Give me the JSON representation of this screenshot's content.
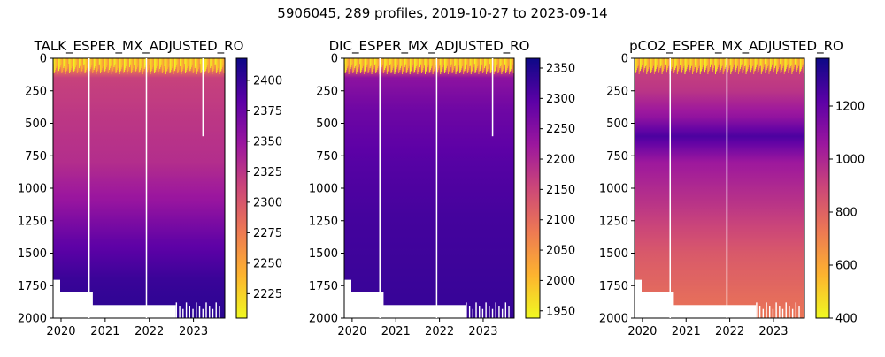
{
  "figure": {
    "suptitle": "5906045, 289 profiles, 2019-10-27 to 2023-09-14"
  },
  "colormap": {
    "name": "plasma_r",
    "stops": [
      "#f0f921",
      "#fdb32f",
      "#ed7953",
      "#cc4778",
      "#9c179e",
      "#5c01a6",
      "#0d0887"
    ]
  },
  "chart_data": [
    {
      "type": "heatmap",
      "title": "TALK_ESPER_MX_ADJUSTED_RO",
      "x_ticks": [
        "2020",
        "2021",
        "2022",
        "2023"
      ],
      "x_range": [
        2019.82,
        2023.71
      ],
      "y_ticks": [
        0,
        250,
        500,
        750,
        1000,
        1250,
        1500,
        1750,
        2000
      ],
      "y_range": [
        0,
        2000
      ],
      "y_inverted": true,
      "colorbar_ticks": [
        2225,
        2250,
        2275,
        2300,
        2325,
        2350,
        2375,
        2400
      ],
      "colorbar_range": [
        2205,
        2418
      ],
      "n_profiles": 289,
      "profile": [
        {
          "depth": 0,
          "value": 2215
        },
        {
          "depth": 40,
          "value": 2250
        },
        {
          "depth": 150,
          "value": 2315
        },
        {
          "depth": 400,
          "value": 2322
        },
        {
          "depth": 800,
          "value": 2330
        },
        {
          "depth": 1100,
          "value": 2350
        },
        {
          "depth": 1400,
          "value": 2378
        },
        {
          "depth": 1700,
          "value": 2398
        },
        {
          "depth": 2000,
          "value": 2405
        }
      ],
      "gaps": [
        2020.62,
        2021.92,
        2023.2
      ],
      "gap_bottoms": [
        2000,
        2000,
        600
      ]
    },
    {
      "type": "heatmap",
      "title": "DIC_ESPER_MX_ADJUSTED_RO",
      "x_ticks": [
        "2020",
        "2021",
        "2022",
        "2023"
      ],
      "x_range": [
        2019.82,
        2023.71
      ],
      "y_ticks": [
        0,
        250,
        500,
        750,
        1000,
        1250,
        1500,
        1750,
        2000
      ],
      "y_range": [
        0,
        2000
      ],
      "y_inverted": true,
      "colorbar_ticks": [
        1950,
        2000,
        2050,
        2100,
        2150,
        2200,
        2250,
        2300,
        2350
      ],
      "colorbar_range": [
        1938,
        2366
      ],
      "n_profiles": 289,
      "profile": [
        {
          "depth": 0,
          "value": 1960
        },
        {
          "depth": 40,
          "value": 2060
        },
        {
          "depth": 150,
          "value": 2240
        },
        {
          "depth": 400,
          "value": 2275
        },
        {
          "depth": 800,
          "value": 2300
        },
        {
          "depth": 1200,
          "value": 2315
        },
        {
          "depth": 2000,
          "value": 2330
        }
      ],
      "gaps": [
        2020.62,
        2021.92,
        2023.2
      ],
      "gap_bottoms": [
        2000,
        2000,
        600
      ]
    },
    {
      "type": "heatmap",
      "title": "pCO2_ESPER_MX_ADJUSTED_RO",
      "x_ticks": [
        "2020",
        "2021",
        "2022",
        "2023"
      ],
      "x_range": [
        2019.82,
        2023.71
      ],
      "y_ticks": [
        0,
        250,
        500,
        750,
        1000,
        1250,
        1500,
        1750,
        2000
      ],
      "y_range": [
        0,
        2000
      ],
      "y_inverted": true,
      "colorbar_ticks": [
        400,
        600,
        800,
        1000,
        1200
      ],
      "colorbar_range": [
        400,
        1380
      ],
      "n_profiles": 289,
      "profile": [
        {
          "depth": 0,
          "value": 420
        },
        {
          "depth": 60,
          "value": 900
        },
        {
          "depth": 250,
          "value": 950
        },
        {
          "depth": 450,
          "value": 1080
        },
        {
          "depth": 600,
          "value": 1250
        },
        {
          "depth": 800,
          "value": 1050
        },
        {
          "depth": 1100,
          "value": 960
        },
        {
          "depth": 1500,
          "value": 830
        },
        {
          "depth": 2000,
          "value": 740
        }
      ],
      "gaps": [
        2020.62,
        2021.92
      ],
      "gap_bottoms": [
        2000,
        2000
      ]
    }
  ]
}
